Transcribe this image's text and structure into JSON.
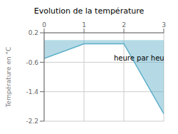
{
  "chart_data": {
    "type": "area",
    "title": "Evolution de la température",
    "ylabel": "Température en °C",
    "x": [
      0,
      1,
      2,
      3
    ],
    "values": [
      -0.5,
      -0.1,
      -0.1,
      -2.0
    ],
    "color": "#5baec8",
    "xlim": [
      0,
      3
    ],
    "ylim": [
      -2.2,
      0.2
    ],
    "xticks": [
      0,
      1,
      2,
      3
    ],
    "yticks": [
      0.2,
      -0.6,
      -1.4,
      -2.2
    ],
    "grid": true,
    "annotations": [
      {
        "text": "heure par heure",
        "x": 1.75,
        "y": -0.42
      }
    ]
  }
}
